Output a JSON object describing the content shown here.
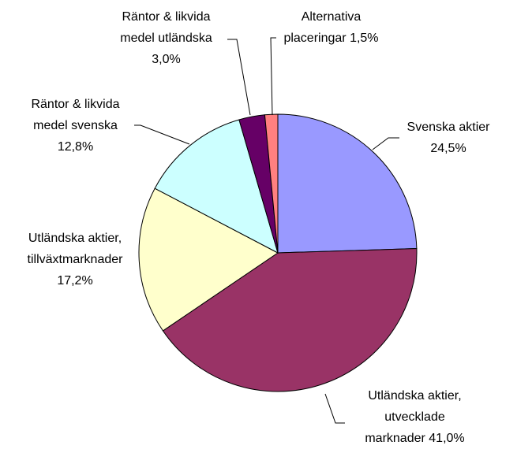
{
  "chart_data": {
    "type": "pie",
    "categories": [
      "Svenska aktier",
      "Utländska aktier, utvecklade marknader",
      "Utländska aktier, tillväxtmarknader",
      "Räntor & likvida medel svenska",
      "Räntor & likvida medel utländska",
      "Alternativa placeringar"
    ],
    "values": [
      24.5,
      41.0,
      17.2,
      12.8,
      3.0,
      1.5
    ],
    "value_labels": [
      "24,5%",
      "41,0%",
      "17,2%",
      "12,8%",
      "3,0%",
      "1,5%"
    ],
    "colors": [
      "#9999ff",
      "#993366",
      "#ffffcc",
      "#ccffff",
      "#660066",
      "#ff8080"
    ]
  }
}
